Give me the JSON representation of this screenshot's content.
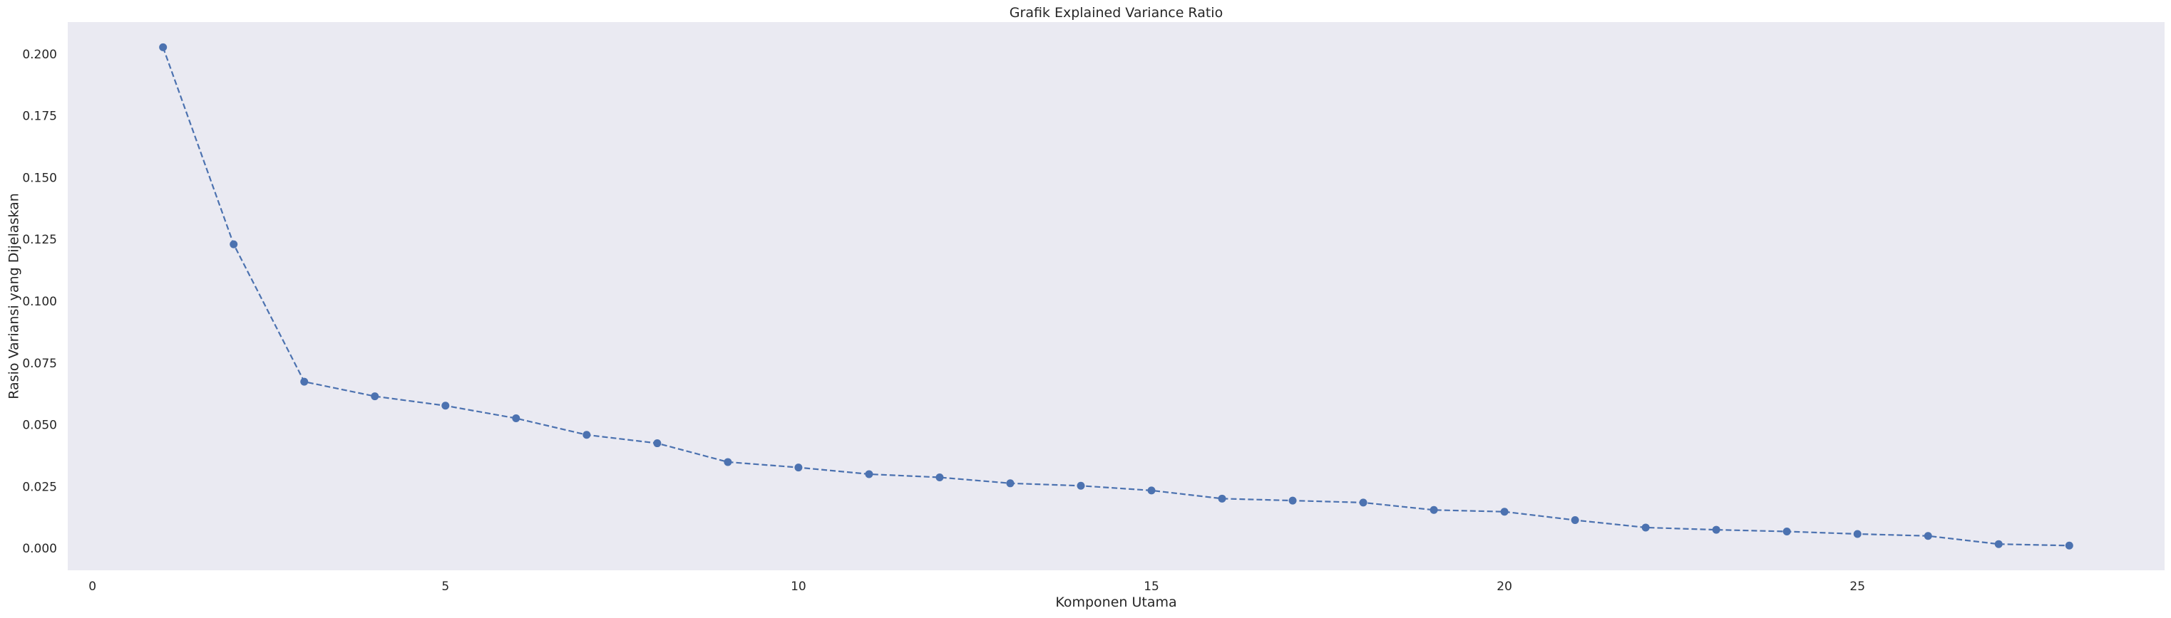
{
  "chart_data": {
    "type": "line",
    "title": "Grafik Explained Variance Ratio",
    "xlabel": "Komponen Utama",
    "ylabel": "Rasio Variansi yang Dijelaskan",
    "xlim": [
      -0.35,
      29.35
    ],
    "ylim": [
      -0.0086,
      0.2132
    ],
    "x_ticks": [
      0,
      5,
      10,
      15,
      20,
      25
    ],
    "x_tick_labels": [
      "0",
      "5",
      "10",
      "15",
      "20",
      "25"
    ],
    "y_ticks": [
      0.0,
      0.025,
      0.05,
      0.075,
      0.1,
      0.125,
      0.15,
      0.175,
      0.2
    ],
    "y_tick_labels": [
      "0.000",
      "0.025",
      "0.050",
      "0.075",
      "0.100",
      "0.125",
      "0.150",
      "0.175",
      "0.200"
    ],
    "grid": false,
    "background_color": "#eaeaf2",
    "series": [
      {
        "color": "#4c72b0",
        "line_style": "dashed",
        "marker": "circle",
        "x": [
          1,
          2,
          3,
          4,
          5,
          6,
          7,
          8,
          9,
          10,
          11,
          12,
          13,
          14,
          15,
          16,
          17,
          18,
          19,
          20,
          21,
          22,
          23,
          24,
          25,
          26,
          27,
          28
        ],
        "values": [
          0.203,
          0.1233,
          0.0677,
          0.0618,
          0.058,
          0.0529,
          0.0462,
          0.0428,
          0.0352,
          0.033,
          0.0303,
          0.029,
          0.0266,
          0.0256,
          0.0237,
          0.0204,
          0.0196,
          0.0188,
          0.0158,
          0.0151,
          0.0117,
          0.0087,
          0.0078,
          0.0071,
          0.0061,
          0.0053,
          0.002,
          0.0014
        ]
      }
    ]
  }
}
